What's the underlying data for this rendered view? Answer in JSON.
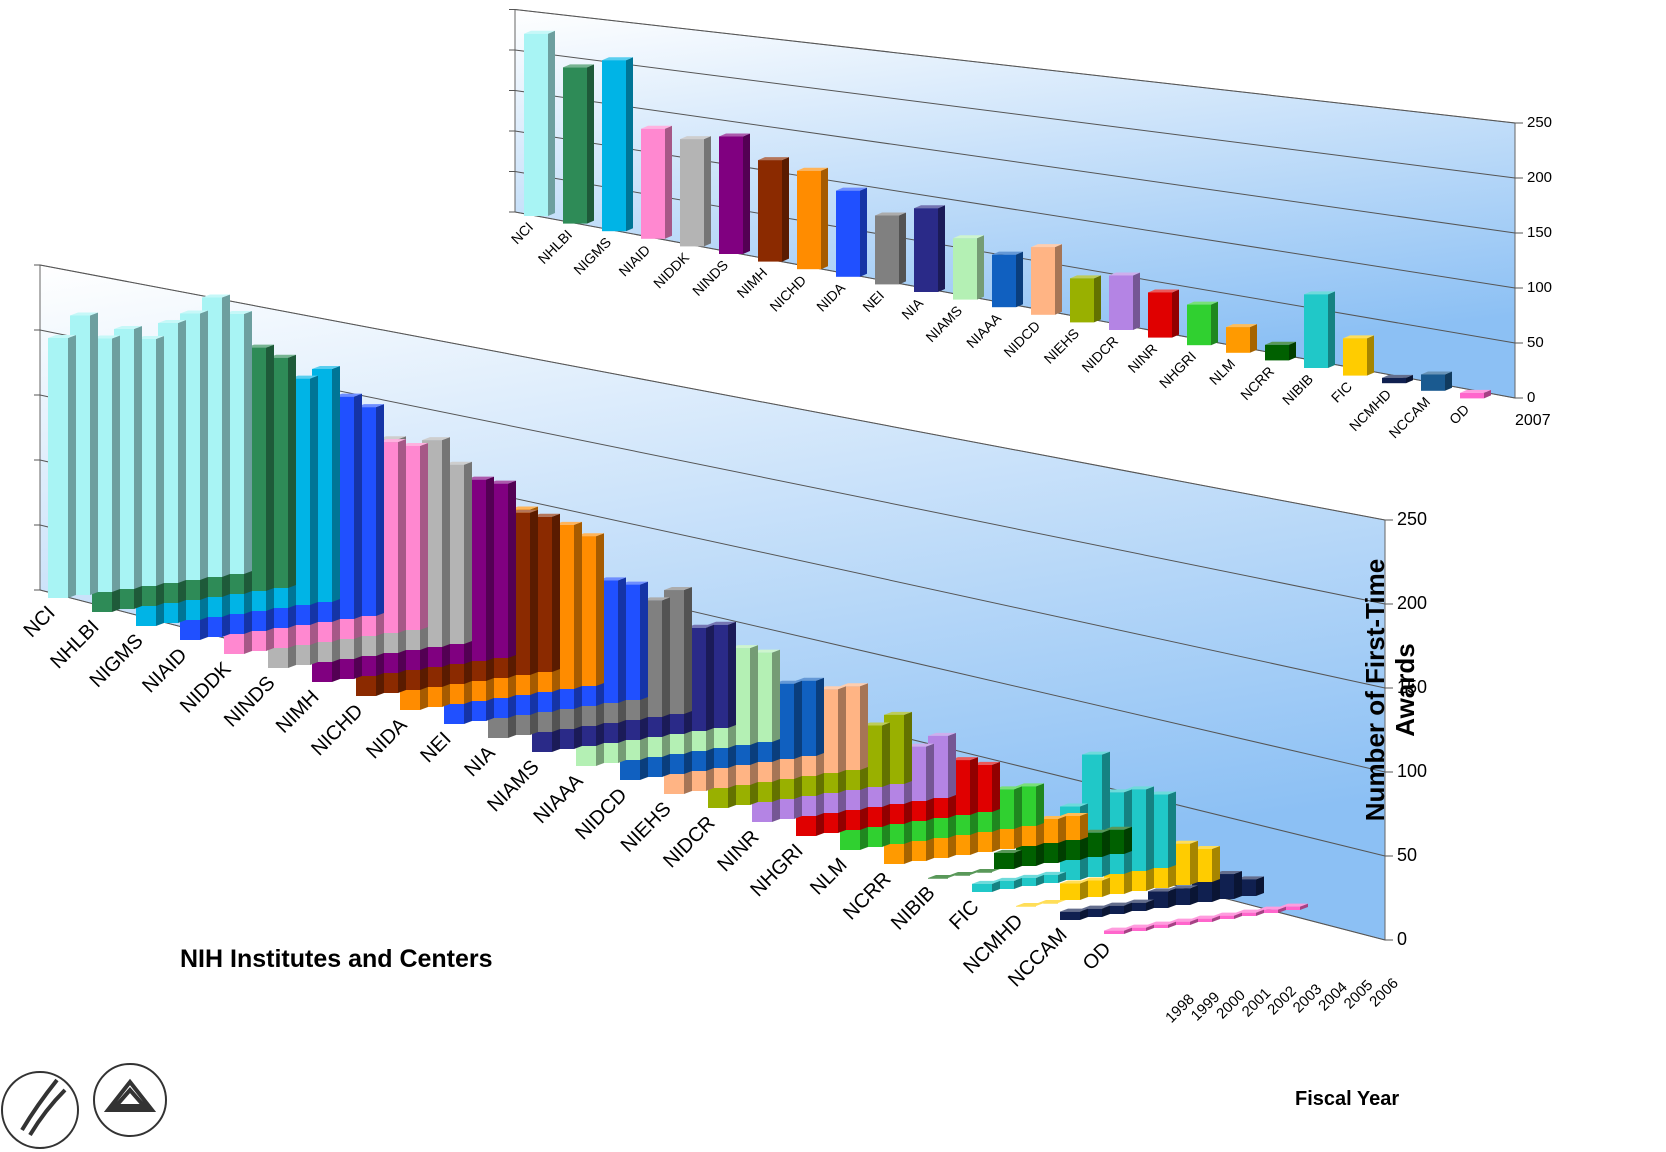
{
  "chart_data": [
    {
      "type": "bar3d",
      "categories": [
        "NCI",
        "NHLBI",
        "NIGMS",
        "NIAID",
        "NIDDK",
        "NINDS",
        "NIMH",
        "NICHD",
        "NIDA",
        "NEI",
        "NIA",
        "NIAMS",
        "NIAAA",
        "NIDCD",
        "NIEHS",
        "NIDCR",
        "NINR",
        "NHGRI",
        "NLM",
        "NCRR",
        "NIBIB",
        "FIC",
        "NCMHD",
        "NCCAM",
        "OD"
      ],
      "x": [
        "2007"
      ],
      "values": [
        [
          225
        ],
        [
          190
        ],
        [
          205
        ],
        [
          130
        ],
        [
          125
        ],
        [
          135
        ],
        [
          115
        ],
        [
          110
        ],
        [
          95
        ],
        [
          75
        ],
        [
          90
        ],
        [
          65
        ],
        [
          55
        ],
        [
          70
        ],
        [
          45
        ],
        [
          55
        ],
        [
          45
        ],
        [
          40
        ],
        [
          25
        ],
        [
          15
        ],
        [
          70
        ],
        [
          35
        ],
        [
          5
        ],
        [
          15
        ],
        [
          5
        ]
      ],
      "colors": [
        "#a8f4f4",
        "#2e8b57",
        "#00b4e6",
        "#ff88d0",
        "#b4b4b4",
        "#800080",
        "#8b2a00",
        "#ff8c00",
        "#2050ff",
        "#808080",
        "#2a2a88",
        "#b4f0b4",
        "#1060c0",
        "#ffb484",
        "#99b000",
        "#b484e4",
        "#e00000",
        "#30d030",
        "#ff9a00",
        "#006000",
        "#20c8c8",
        "#ffcc00",
        "#102050",
        "#1a5a90",
        "#ff66cc"
      ],
      "ylim": [
        0,
        250
      ],
      "yticks": [
        0,
        50,
        100,
        150,
        200,
        250
      ]
    },
    {
      "type": "bar3d",
      "categories": [
        "NCI",
        "NHLBI",
        "NIGMS",
        "NIAID",
        "NIDDK",
        "NINDS",
        "NIMH",
        "NICHD",
        "NIDA",
        "NEI",
        "NIA",
        "NIAMS",
        "NIAAA",
        "NIDCD",
        "NIEHS",
        "NIDCR",
        "NINR",
        "NHGRI",
        "NLM",
        "NCRR",
        "NIBIB",
        "FIC",
        "NCMHD",
        "NCCAM",
        "OD"
      ],
      "x": [
        "1998",
        "1999",
        "2000",
        "2001",
        "2002",
        "2003",
        "2004",
        "2005",
        "2006"
      ],
      "values": [
        [
          200,
          215,
          195,
          200,
          190,
          200,
          205,
          215,
          200
        ],
        [
          185,
          175,
          180,
          190,
          195,
          200,
          190,
          185,
          175
        ],
        [
          170,
          175,
          180,
          190,
          185,
          175,
          165,
          170,
          175
        ],
        [
          160,
          165,
          170,
          175,
          165,
          170,
          160,
          165,
          155
        ],
        [
          140,
          150,
          155,
          145,
          140,
          150,
          145,
          140,
          135
        ],
        [
          135,
          140,
          135,
          145,
          150,
          155,
          140,
          150,
          130
        ],
        [
          120,
          135,
          145,
          150,
          155,
          150,
          140,
          130,
          125
        ],
        [
          110,
          120,
          130,
          140,
          135,
          125,
          120,
          115,
          110
        ],
        [
          100,
          110,
          115,
          120,
          125,
          130,
          120,
          115,
          105
        ],
        [
          90,
          85,
          80,
          85,
          90,
          85,
          80,
          85,
          80
        ],
        [
          75,
          80,
          85,
          90,
          95,
          85,
          90,
          80,
          85
        ],
        [
          70,
          75,
          80,
          85,
          80,
          75,
          80,
          70,
          70
        ],
        [
          60,
          65,
          70,
          65,
          70,
          65,
          60,
          65,
          60
        ],
        [
          50,
          55,
          60,
          55,
          60,
          55,
          55,
          50,
          50
        ],
        [
          50,
          55,
          60,
          65,
          70,
          60,
          60,
          55,
          55
        ],
        [
          45,
          50,
          55,
          50,
          45,
          50,
          45,
          40,
          45
        ],
        [
          35,
          40,
          45,
          45,
          50,
          45,
          40,
          35,
          40
        ],
        [
          25,
          30,
          45,
          45,
          45,
          45,
          40,
          35,
          30
        ],
        [
          20,
          20,
          25,
          25,
          30,
          30,
          30,
          25,
          25
        ],
        [
          15,
          15,
          20,
          20,
          20,
          20,
          20,
          15,
          15
        ],
        [
          0,
          0,
          0,
          10,
          15,
          15,
          15,
          15,
          15
        ],
        [
          5,
          5,
          5,
          5,
          45,
          75,
          50,
          50,
          45
        ],
        [
          0,
          0,
          10,
          10,
          25,
          30,
          20,
          25,
          20
        ],
        [
          5,
          5,
          5,
          5,
          10,
          10,
          15,
          15,
          10
        ],
        [
          2,
          2,
          2,
          2,
          2,
          2,
          2,
          2,
          2
        ]
      ],
      "colors": [
        "#a8f4f4",
        "#2e8b57",
        "#00b4e6",
        "#2050ff",
        "#ff88d0",
        "#b4b4b4",
        "#800080",
        "#8b2a00",
        "#ff8c00",
        "#2050ff",
        "#808080",
        "#2a2a88",
        "#b4f0b4",
        "#1060c0",
        "#ffb484",
        "#99b000",
        "#b484e4",
        "#e00000",
        "#30d030",
        "#ff9a00",
        "#006000",
        "#20c8c8",
        "#ffcc00",
        "#102050",
        "#ff66cc"
      ],
      "ylim": [
        0,
        250
      ],
      "yticks": [
        0,
        50,
        100,
        150,
        200,
        250
      ],
      "xlabel": "NIH Institutes and Centers",
      "ylabel": "Number of First-Time Awards",
      "zlabel": "Fiscal Year"
    }
  ]
}
